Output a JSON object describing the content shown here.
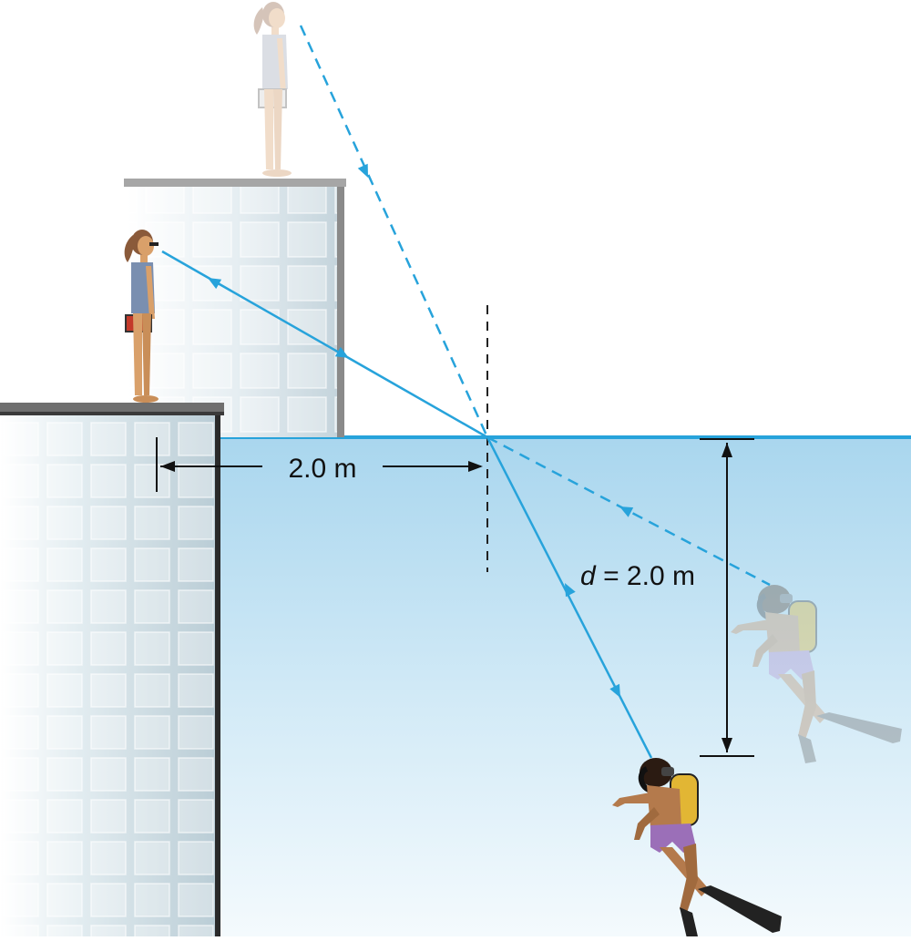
{
  "labels": {
    "horizontal_distance": "2.0 m",
    "depth_var": "d",
    "depth_rest": " = 2.0 m"
  },
  "colors": {
    "water_top": "#a9d6ee",
    "water_bottom": "#f3f9fd",
    "water_surface": "#27a3db",
    "ray": "#27a3db",
    "building_glass": "#d7e4ea",
    "building_edge": "#2a2a2a",
    "roof": "#8e8e8e",
    "skin": "#d9a06a",
    "suit": "#7a8fb0",
    "shorts": "#9b6fb8",
    "tank": "#e2b634",
    "hair": "#8a5a3a"
  },
  "figures": {
    "person": "person-standing-icon",
    "image_person": "person-virtual-image-icon",
    "diver": "scuba-diver-icon",
    "image_diver": "scuba-diver-virtual-image-icon"
  }
}
